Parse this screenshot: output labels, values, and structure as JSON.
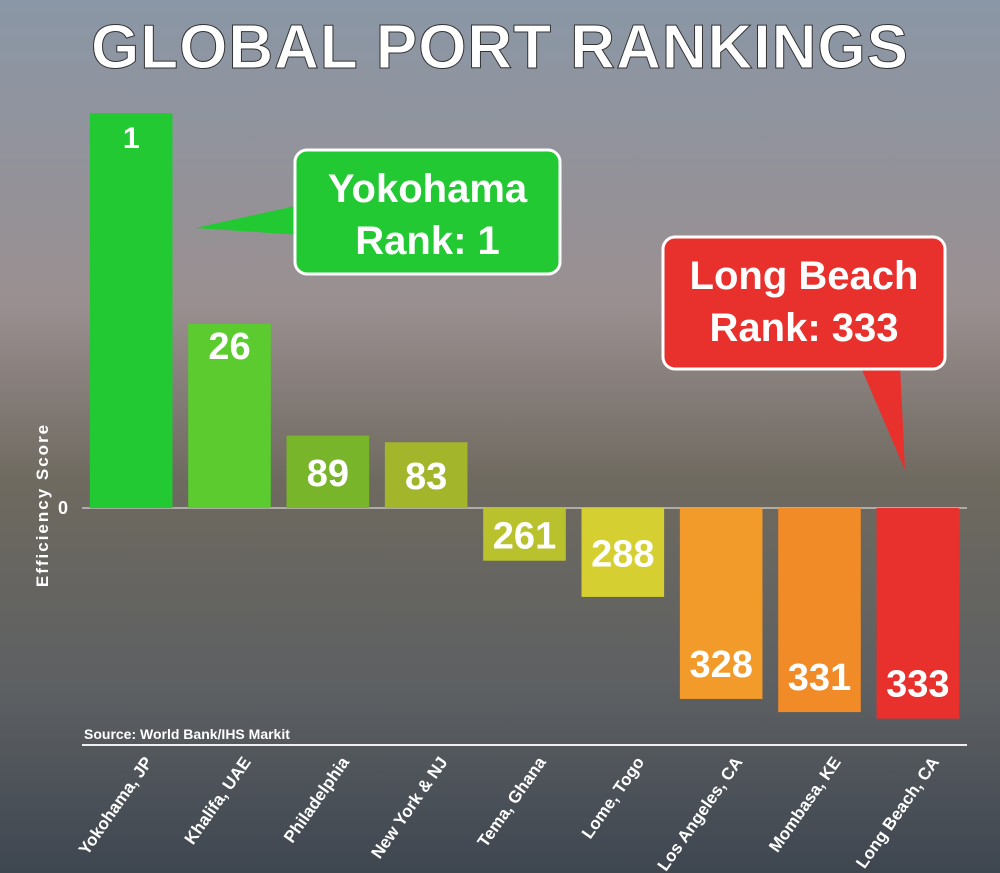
{
  "chart_data": {
    "type": "bar",
    "title": "GLOBAL PORT RANKINGS",
    "y_label": "Efficiency Score",
    "source": "Source: World Bank/IHS Markit",
    "categories": [
      "Yokohama, JP",
      "Khalifa, UAE",
      "Philadelphia",
      "New York & NJ",
      "Tema, Ghana",
      "Lome, Togo",
      "Los Angeles, CA",
      "Mombasa, KE",
      "Long Beach, CA"
    ],
    "values": [
      60,
      28,
      11,
      10,
      -8,
      -13.5,
      -29,
      -31,
      -32
    ],
    "ranks": [
      1,
      26,
      89,
      83,
      261,
      288,
      328,
      331,
      333
    ],
    "colors": [
      "#22c933",
      "#5ccb30",
      "#78b52a",
      "#a3b62b",
      "#b9c22d",
      "#d5cf31",
      "#f39b2a",
      "#f08b28",
      "#e8302c"
    ],
    "ylim": [
      -36,
      62
    ],
    "yticks": [
      0
    ],
    "annotations": [
      {
        "lines": [
          "Yokohama",
          "Rank: 1"
        ],
        "color": "#22c933"
      },
      {
        "lines": [
          "Long Beach",
          "Rank: 333"
        ],
        "color": "#e8302c"
      }
    ]
  }
}
